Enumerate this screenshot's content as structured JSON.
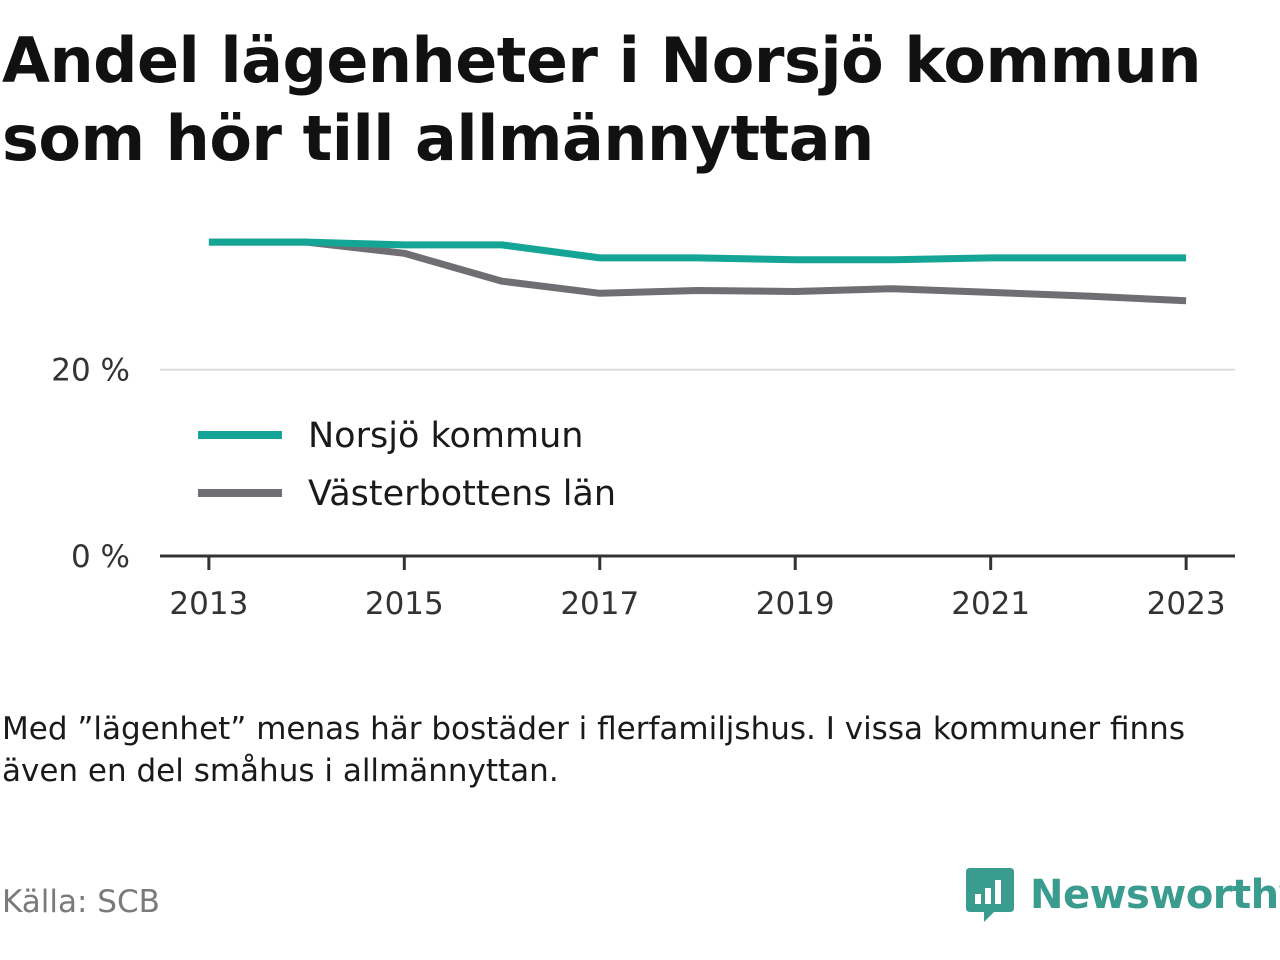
{
  "title": "Andel lägenheter i Norsjö kommun som hör till allmännyttan",
  "note": "Med ”lägenhet” menas här bostäder i flerfamiljshus. I vissa kommuner finns även en del småhus i allmännyttan.",
  "source": "Källa: SCB",
  "brand": {
    "name": "Newsworthy",
    "icon": "newsworthy-logo-icon",
    "color": "#3a9b8f"
  },
  "chart_data": {
    "type": "line",
    "x": [
      2013,
      2014,
      2015,
      2016,
      2017,
      2018,
      2019,
      2020,
      2021,
      2022,
      2023
    ],
    "xticks": [
      2013,
      2015,
      2017,
      2019,
      2021,
      2023
    ],
    "xtick_labels": [
      "2013",
      "2015",
      "2017",
      "2019",
      "2021",
      "2023"
    ],
    "yticks": [
      0,
      20
    ],
    "ytick_labels": [
      "0 %",
      "20 %"
    ],
    "ylim": [
      0,
      35
    ],
    "xlim": [
      2012.5,
      2023.5
    ],
    "grid": true,
    "legend": "inside-left",
    "series": [
      {
        "name": "Norsjö kommun",
        "color": "#15a596",
        "values": [
          33.7,
          33.7,
          33.4,
          33.4,
          32.0,
          32.0,
          31.8,
          31.8,
          32.0,
          32.0,
          32.0
        ]
      },
      {
        "name": "Västerbottens län",
        "color": "#6e6e73",
        "values": [
          33.7,
          33.7,
          32.5,
          29.5,
          28.2,
          28.5,
          28.4,
          28.7,
          28.3,
          27.9,
          27.4
        ]
      }
    ]
  }
}
